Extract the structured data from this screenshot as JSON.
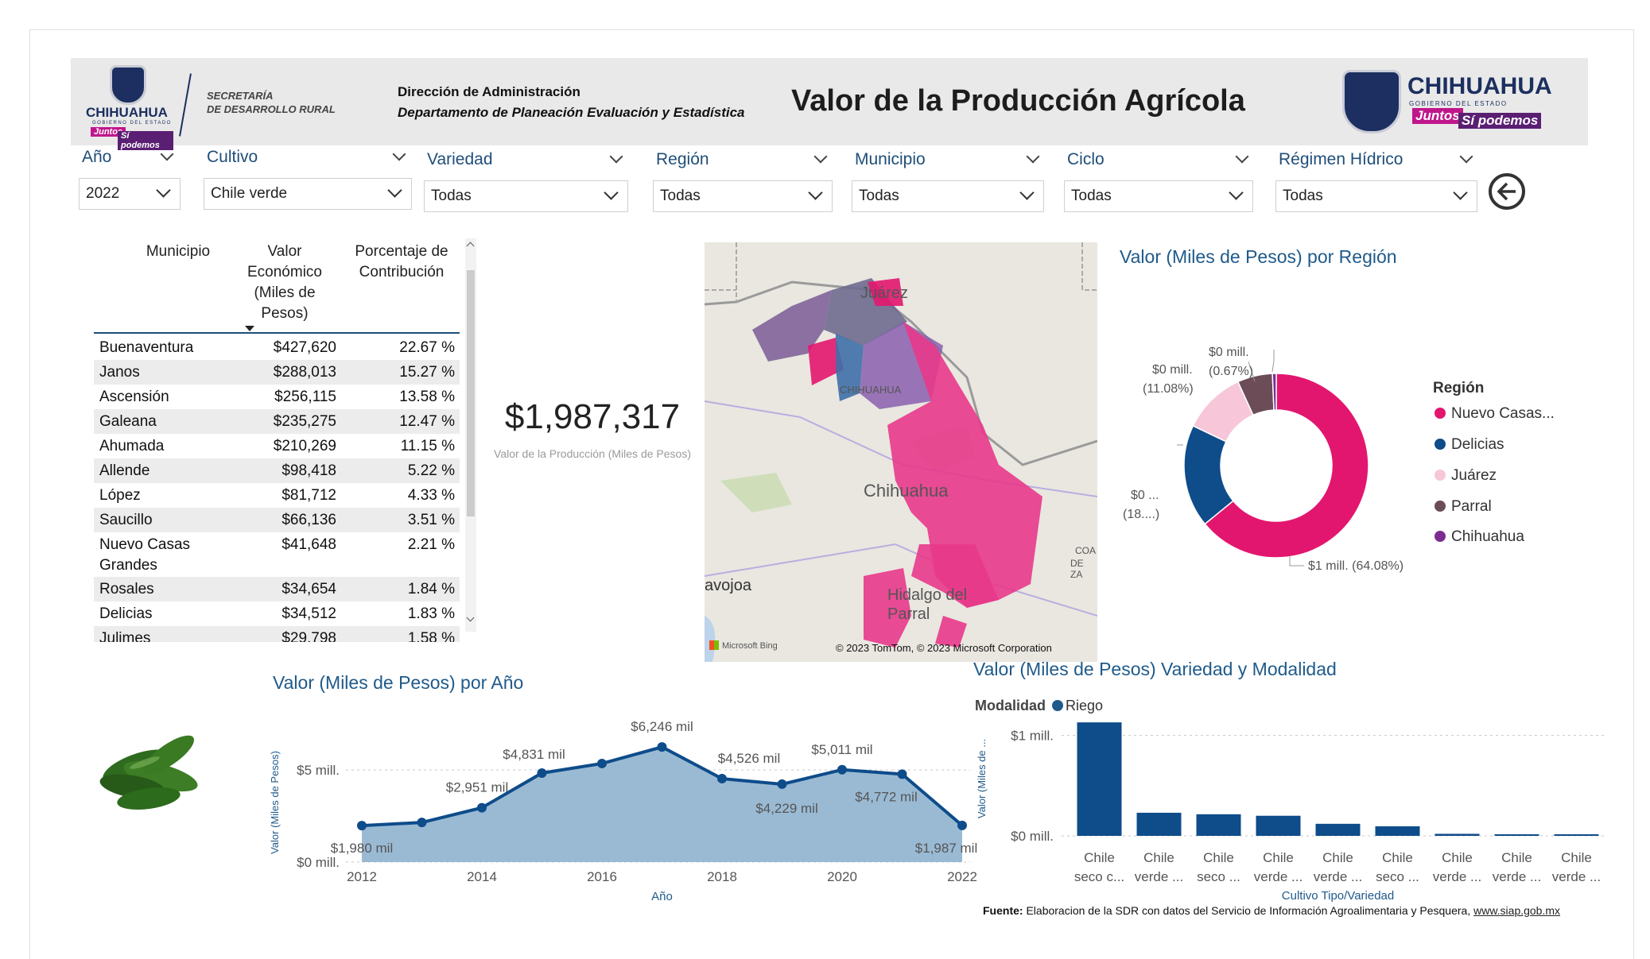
{
  "header": {
    "secretaria_line1": "SECRETARÍA",
    "secretaria_line2": "DE DESARROLLO RURAL",
    "logo_left_word": "CHIHUAHUA",
    "logo_left_sub": "GOBIERNO DEL ESTADO",
    "logo_juntos": "Juntos",
    "logo_podemos": "Sí podemos",
    "logo_right_word": "CHIHUAHUA",
    "logo_right_sub": "GOBIERNO DEL ESTADO",
    "direccion": "Dirección de Administración",
    "departamento": "Departamento de Planeación Evaluación y Estadística",
    "title": "Valor de la Producción Agrícola"
  },
  "filters": [
    {
      "label": "Año",
      "value": "2022"
    },
    {
      "label": "Cultivo",
      "value": "Chile verde"
    },
    {
      "label": "Variedad",
      "value": "Todas"
    },
    {
      "label": "Región",
      "value": "Todas"
    },
    {
      "label": "Municipio",
      "value": "Todas"
    },
    {
      "label": "Ciclo",
      "value": "Todas"
    },
    {
      "label": "Régimen Hídrico",
      "value": "Todas"
    }
  ],
  "table": {
    "headers": [
      "Municipio",
      "Valor Económico (Miles de Pesos)",
      "Porcentaje de Contribución"
    ],
    "header_lines": {
      "municipio": "Municipio",
      "valor": [
        "Valor",
        "Económico",
        "(Miles de",
        "Pesos)"
      ],
      "porcentaje": [
        "Porcentaje de",
        "Contribución"
      ]
    },
    "rows": [
      [
        "Buenaventura",
        "$427,620",
        "22.67 %"
      ],
      [
        "Janos",
        "$288,013",
        "15.27 %"
      ],
      [
        "Ascensión",
        "$256,115",
        "13.58 %"
      ],
      [
        "Galeana",
        "$235,275",
        "12.47 %"
      ],
      [
        "Ahumada",
        "$210,269",
        "11.15 %"
      ],
      [
        "Allende",
        "$98,418",
        "5.22 %"
      ],
      [
        "López",
        "$81,712",
        "4.33 %"
      ],
      [
        "Saucillo",
        "$66,136",
        "3.51 %"
      ],
      [
        "Nuevo Casas Grandes",
        "$41,648",
        "2.21 %"
      ],
      [
        "Rosales",
        "$34,654",
        "1.84 %"
      ],
      [
        "Delicias",
        "$34,512",
        "1.83 %"
      ],
      [
        "Julimes",
        "$29,798",
        "1.58 %"
      ]
    ]
  },
  "kpi": {
    "value": "$1,987,317",
    "label": "Valor de la Producción (Miles de Pesos)"
  },
  "map": {
    "labels": [
      "Juárez",
      "CHIHUAHUA",
      "Chihuahua",
      "Hidalgo del Parral",
      "avojoa",
      "COA",
      "DE ZA"
    ],
    "attribution": "© 2023 TomTom, © 2023 Microsoft Corporation",
    "bing": "Microsoft Bing"
  },
  "colors": {
    "accent_title": "#1f5a8a",
    "nuevo_casas": "#e3166f",
    "delicias": "#0e4c8a",
    "juarez": "#f7c6d9",
    "parral": "#6b4c57",
    "chihuahua": "#7b2d91",
    "line_fill": "#8fb3cf",
    "line_stroke": "#0e4c8a"
  },
  "region_chart": {
    "title": "Valor (Miles de Pesos) por Región",
    "legend_title": "Región",
    "legend": [
      "Nuevo Casas...",
      "Delicias",
      "Juárez",
      "Parral",
      "Chihuahua"
    ],
    "data_labels": {
      "nuevo": "$1 mill. (64.08%)",
      "delicias_1": "$0 ...",
      "delicias_2": "(18....)",
      "juarez_1": "$0 mill.",
      "juarez_2": "(11.08%)",
      "parral_1": "$0 mill.",
      "parral_2": "(0.67%)"
    }
  },
  "year_chart": {
    "title": "Valor (Miles de Pesos) por Año",
    "xlabel": "Año",
    "ylabel": "Valor (Miles de Pesos)",
    "yticks": [
      "$5 mill.",
      "$0 mill."
    ],
    "data_labels": [
      "$1,980 mil",
      "$2,951 mil",
      "$4,831 mil",
      "$6,246 mil",
      "$4,526 mil",
      "$4,229 mil",
      "$5,011 mil",
      "$4,772 mil",
      "$1,987 mil"
    ]
  },
  "variety_chart": {
    "title": "Valor (Miles de Pesos) Variedad y Modalidad",
    "legend_title": "Modalidad",
    "legend_item": "Riego",
    "xlabel": "Cultivo Tipo/Variedad",
    "ylabel": "Valor (Miles de ...",
    "yticks": [
      "$1 mill.",
      "$0 mill."
    ]
  },
  "chart_data": [
    {
      "type": "pie",
      "title": "Valor (Miles de Pesos) por Región",
      "categories": [
        "Nuevo Casas...",
        "Delicias",
        "Juárez",
        "Parral",
        "Chihuahua"
      ],
      "values": [
        64.08,
        18.02,
        11.08,
        6.15,
        0.67
      ]
    },
    {
      "type": "area",
      "title": "Valor (Miles de Pesos) por Año",
      "xlabel": "Año",
      "ylabel": "Valor (Miles de Pesos)",
      "x": [
        2012,
        2013,
        2014,
        2015,
        2016,
        2017,
        2018,
        2019,
        2020,
        2021,
        2022
      ],
      "xticks": [
        2012,
        2014,
        2016,
        2018,
        2020,
        2022
      ],
      "values": [
        1980,
        2150,
        2951,
        4831,
        5350,
        6246,
        4526,
        4229,
        5011,
        4772,
        1987
      ],
      "ylim": [
        0,
        6900
      ]
    },
    {
      "type": "bar",
      "title": "Valor (Miles de Pesos) Variedad y Modalidad",
      "xlabel": "Cultivo Tipo/Variedad",
      "ylabel": "Valor (Miles de ...",
      "categories": [
        [
          "Chile",
          "seco c..."
        ],
        [
          "Chile",
          "verde ..."
        ],
        [
          "Chile",
          "seco ..."
        ],
        [
          "Chile",
          "verde ..."
        ],
        [
          "Chile",
          "verde ..."
        ],
        [
          "Chile",
          "seco ..."
        ],
        [
          "Chile",
          "verde ..."
        ],
        [
          "Chile",
          "verde ..."
        ],
        [
          "Chile",
          "verde ..."
        ]
      ],
      "series": [
        {
          "name": "Riego",
          "values": [
            1130000,
            230000,
            215000,
            200000,
            120000,
            95000,
            20000,
            15000,
            12000
          ]
        }
      ],
      "ylim": [
        0,
        1250000
      ]
    }
  ],
  "fuente": {
    "label": "Fuente:",
    "text": "Elaboracion de la SDR con datos del Servicio de Información Agroalimentaria y Pesquera,",
    "link": "www.siap.gob.mx"
  }
}
